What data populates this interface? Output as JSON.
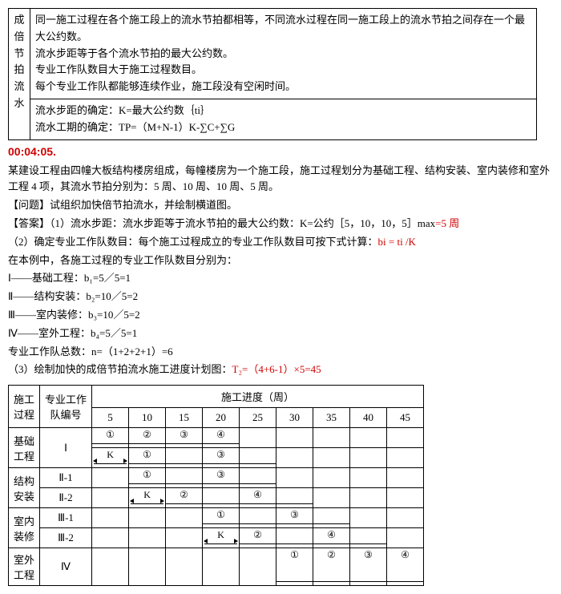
{
  "top": {
    "side_label_1": "成倍节",
    "side_label_2": "拍流水",
    "row1": "同一施工过程在各个施工段上的流水节拍都相等，不同流水过程在同一施工段上的流水节拍之间存在一个最大公约数。",
    "row2": "流水步距等于各个流水节拍的最大公约数。",
    "row3": "专业工作队数目大于施工过程数目。",
    "row4": "每个专业工作队都能够连续作业，施工段没有空闲时间。",
    "row5": "流水步距的确定：K=最大公约数｛ti｝",
    "row6": "流水工期的确定：TP=（M+N-1）K-∑C+∑G"
  },
  "timestamp": "00:04:05.",
  "body": {
    "p1": "某建设工程由四幢大板结构楼房组成，每幢楼房为一个施工段，施工过程划分为基础工程、结构安装、室内装修和室外工程 4 项，其流水节拍分别为：5 周、10 周、10 周、5 周。",
    "p2": "【问题】试组织加快倍节拍流水，并绘制横道图。",
    "p3a": "【答案】（1）流水步距：流水步距等于流水节拍的最大公约数：K=公约［5，10，10，5］max",
    "p3b": "=5 周",
    "p4a": "（2）确定专业工作队数目：每个施工过程成立的专业工作队数目可按下式计算：",
    "p4b": "bi = ti /K",
    "p5": "在本例中，各施工过程的专业工作队数目分别为：",
    "p6": "Ⅰ——基础工程：b₁=5／5=1",
    "p7": "Ⅱ——结构安装：b₂=10／5=2",
    "p8": "Ⅲ——室内装修：b₃=10／5=2",
    "p9": "Ⅳ——室外工程：b₄=5／5=1",
    "p10": "专业工作队总数：n=（1+2+2+1）=6",
    "p11a": "（3）绘制加快的成倍节拍流水施工进度计划图：",
    "p11b": "T₂=（4+6-1）×5=45"
  },
  "schedule": {
    "col_proc": "施工过程",
    "col_team": "专业工作队编号",
    "col_prog": "施工进度（周）",
    "ticks": [
      "5",
      "10",
      "15",
      "20",
      "25",
      "30",
      "35",
      "40",
      "45"
    ],
    "rows": [
      {
        "proc": "基础工程",
        "team": "Ⅰ",
        "rowspan": 1,
        "label_rs": 2,
        "bars": [
          {
            "col": 0,
            "num": "①"
          },
          {
            "col": 1,
            "num": "②"
          },
          {
            "col": 2,
            "num": "③"
          },
          {
            "col": 3,
            "num": "④"
          }
        ]
      },
      {
        "proc": "",
        "team": "",
        "bars": [
          {
            "col": 0,
            "k": true
          },
          {
            "col": 1,
            "num": "①"
          },
          {
            "col": 2,
            "ext": true
          },
          {
            "col": 3,
            "num": "③"
          },
          {
            "col": 4,
            "ext": true
          }
        ]
      },
      {
        "proc": "结构安装",
        "team": "Ⅱ-1",
        "rowspan": 2,
        "bars": [
          {
            "col": 1,
            "num": "①"
          },
          {
            "col": 2,
            "ext": true
          },
          {
            "col": 3,
            "num": "③"
          },
          {
            "col": 4,
            "ext": true
          }
        ]
      },
      {
        "proc": "",
        "team": "Ⅱ-2",
        "bars": [
          {
            "col": 1,
            "k": true
          },
          {
            "col": 2,
            "num": "②"
          },
          {
            "col": 3,
            "ext": true
          },
          {
            "col": 4,
            "num": "④"
          },
          {
            "col": 5,
            "ext": true
          }
        ]
      },
      {
        "proc": "室内装修",
        "team": "Ⅲ-1",
        "rowspan": 2,
        "bars": [
          {
            "col": 3,
            "num": "①"
          },
          {
            "col": 4,
            "ext": true
          },
          {
            "col": 5,
            "num": "③"
          },
          {
            "col": 6,
            "ext": true
          }
        ]
      },
      {
        "proc": "",
        "team": "Ⅲ-2",
        "bars": [
          {
            "col": 3,
            "k": true
          },
          {
            "col": 4,
            "num": "②"
          },
          {
            "col": 5,
            "ext": true
          },
          {
            "col": 6,
            "num": "④"
          },
          {
            "col": 7,
            "ext": true
          }
        ]
      },
      {
        "proc": "室外工程",
        "team": "Ⅳ",
        "rowspan": 1,
        "label_rs": 2,
        "bars": [
          {
            "col": 5,
            "num": "①"
          },
          {
            "col": 6,
            "num": "②"
          },
          {
            "col": 7,
            "num": "③"
          },
          {
            "col": 8,
            "num": "④"
          }
        ]
      }
    ]
  }
}
